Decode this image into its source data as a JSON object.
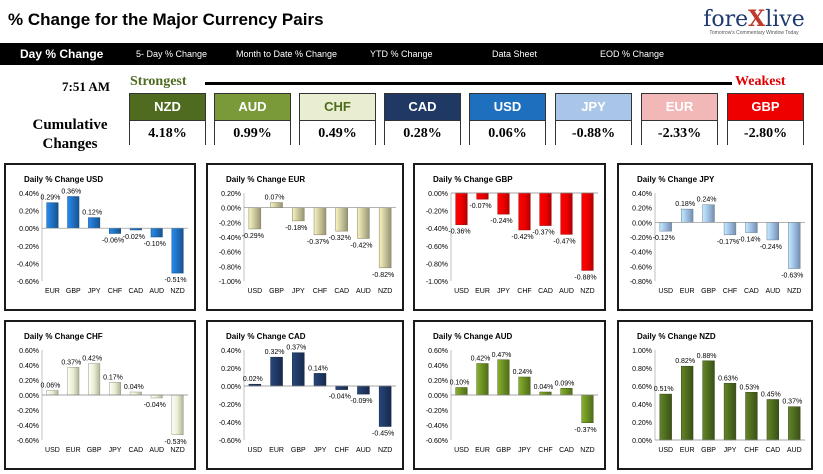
{
  "title": "% Change for the Major Currency Pairs",
  "logo": {
    "brand_a": "fore",
    "brand_x": "X",
    "brand_b": "live",
    "tagline": "Tomorrow's Commentary Window Today"
  },
  "nav": [
    "Day % Change",
    "5- Day % Change",
    "Month to Date % Change",
    "YTD % Change",
    "Data Sheet",
    "EOD % Change"
  ],
  "time": "7:51 AM",
  "strongest_label": "Strongest",
  "weakest_label": "Weakest",
  "cumulative_label": "Cumulative Changes",
  "currencies": [
    {
      "code": "NZD",
      "value": "4.18%",
      "color": "#4e6b1f"
    },
    {
      "code": "AUD",
      "value": "0.99%",
      "color": "#7a9a3a"
    },
    {
      "code": "CHF",
      "value": "0.49%",
      "color": "#e8eecf"
    },
    {
      "code": "CAD",
      "value": "0.28%",
      "color": "#1f3864"
    },
    {
      "code": "USD",
      "value": "0.06%",
      "color": "#1f6fbf"
    },
    {
      "code": "JPY",
      "value": "-0.88%",
      "color": "#a9c6e8"
    },
    {
      "code": "EUR",
      "value": "-2.33%",
      "color": "#f2b8b8"
    },
    {
      "code": "GBP",
      "value": "-2.80%",
      "color": "#ee0000"
    }
  ],
  "chart_data": [
    {
      "type": "bar",
      "title": "Daily % Change USD",
      "categories": [
        "EUR",
        "GBP",
        "JPY",
        "CHF",
        "CAD",
        "AUD",
        "NZD"
      ],
      "values": [
        0.29,
        0.36,
        0.12,
        -0.06,
        -0.02,
        -0.1,
        -0.51
      ],
      "labels": [
        "0.29%",
        "0.36%",
        "0.12%",
        "-0.06%",
        "-0.02%",
        "-0.10%",
        "-0.51%"
      ],
      "ylim": [
        -0.6,
        0.4
      ],
      "ticks": [
        "-0.60%",
        "-0.40%",
        "-0.20%",
        "0.00%",
        "0.20%",
        "0.40%"
      ],
      "color": "#1f6fbf"
    },
    {
      "type": "bar",
      "title": "Daily % Change EUR",
      "categories": [
        "USD",
        "GBP",
        "JPY",
        "CHF",
        "CAD",
        "AUD",
        "NZD"
      ],
      "values": [
        -0.29,
        0.07,
        -0.18,
        -0.37,
        -0.32,
        -0.42,
        -0.82
      ],
      "labels": [
        "-0.29%",
        "0.07%",
        "-0.18%",
        "-0.37%",
        "-0.32%",
        "-0.42%",
        "-0.82%"
      ],
      "ylim": [
        -1.0,
        0.2
      ],
      "ticks": [
        "-1.00%",
        "-0.80%",
        "-0.60%",
        "-0.40%",
        "-0.20%",
        "0.00%",
        "0.20%"
      ],
      "color": "#c8c49a"
    },
    {
      "type": "bar",
      "title": "Daily % Change GBP",
      "categories": [
        "USD",
        "EUR",
        "JPY",
        "CHF",
        "CAD",
        "AUD",
        "NZD"
      ],
      "values": [
        -0.36,
        -0.07,
        -0.24,
        -0.42,
        -0.37,
        -0.47,
        -0.88
      ],
      "labels": [
        "-0.36%",
        "-0.07%",
        "-0.24%",
        "-0.42%",
        "-0.37%",
        "-0.47%",
        "-0.88%"
      ],
      "ylim": [
        -1.0,
        0.0
      ],
      "ticks": [
        "-1.00%",
        "-0.80%",
        "-0.60%",
        "-0.40%",
        "-0.20%",
        "0.00%"
      ],
      "color": "#ee0000"
    },
    {
      "type": "bar",
      "title": "Daily % Change JPY",
      "categories": [
        "USD",
        "EUR",
        "GBP",
        "CHF",
        "CAD",
        "AUD",
        "NZD"
      ],
      "values": [
        -0.12,
        0.18,
        0.24,
        -0.17,
        -0.14,
        -0.24,
        -0.63
      ],
      "labels": [
        "-0.12%",
        "0.18%",
        "0.24%",
        "-0.17%",
        "-0.14%",
        "-0.24%",
        "-0.63%"
      ],
      "ylim": [
        -0.8,
        0.4
      ],
      "ticks": [
        "-0.80%",
        "-0.60%",
        "-0.40%",
        "-0.20%",
        "0.00%",
        "0.20%",
        "0.40%"
      ],
      "color": "#9dbde3"
    },
    {
      "type": "bar",
      "title": "Daily % Change CHF",
      "categories": [
        "USD",
        "EUR",
        "GBP",
        "JPY",
        "CAD",
        "AUD",
        "NZD"
      ],
      "values": [
        0.06,
        0.37,
        0.42,
        0.17,
        0.04,
        -0.04,
        -0.53
      ],
      "labels": [
        "0.06%",
        "0.37%",
        "0.42%",
        "0.17%",
        "0.04%",
        "-0.04%",
        "-0.53%"
      ],
      "ylim": [
        -0.6,
        0.6
      ],
      "ticks": [
        "-0.60%",
        "-0.40%",
        "-0.20%",
        "0.00%",
        "0.20%",
        "0.40%",
        "0.60%"
      ],
      "color": "#e8eecf"
    },
    {
      "type": "bar",
      "title": "Daily % Change CAD",
      "categories": [
        "USD",
        "EUR",
        "GBP",
        "JPY",
        "CHF",
        "AUD",
        "NZD"
      ],
      "values": [
        0.02,
        0.32,
        0.37,
        0.14,
        -0.04,
        -0.09,
        -0.45
      ],
      "labels": [
        "0.02%",
        "0.32%",
        "0.37%",
        "0.14%",
        "-0.04%",
        "-0.09%",
        "-0.45%"
      ],
      "ylim": [
        -0.6,
        0.4
      ],
      "ticks": [
        "-0.60%",
        "-0.40%",
        "-0.20%",
        "0.00%",
        "0.20%",
        "0.40%"
      ],
      "color": "#1f3864"
    },
    {
      "type": "bar",
      "title": "Daily % Change AUD",
      "categories": [
        "USD",
        "EUR",
        "GBP",
        "JPY",
        "CHF",
        "CAD",
        "NZD"
      ],
      "values": [
        0.1,
        0.42,
        0.47,
        0.24,
        0.04,
        0.09,
        -0.37
      ],
      "labels": [
        "0.10%",
        "0.42%",
        "0.47%",
        "0.24%",
        "0.04%",
        "0.09%",
        "-0.37%"
      ],
      "ylim": [
        -0.6,
        0.6
      ],
      "ticks": [
        "-0.60%",
        "-0.40%",
        "-0.20%",
        "0.00%",
        "0.20%",
        "0.40%",
        "0.60%"
      ],
      "color": "#6b8e23"
    },
    {
      "type": "bar",
      "title": "Daily % Change NZD",
      "categories": [
        "USD",
        "EUR",
        "GBP",
        "JPY",
        "CHF",
        "CAD",
        "AUD"
      ],
      "values": [
        0.51,
        0.82,
        0.88,
        0.63,
        0.53,
        0.45,
        0.37
      ],
      "labels": [
        "0.51%",
        "0.82%",
        "0.88%",
        "0.63%",
        "0.53%",
        "0.45%",
        "0.37%"
      ],
      "ylim": [
        0.0,
        1.0
      ],
      "ticks": [
        "0.00%",
        "0.20%",
        "0.40%",
        "0.60%",
        "0.80%",
        "1.00%"
      ],
      "color": "#4e6b1f"
    }
  ]
}
